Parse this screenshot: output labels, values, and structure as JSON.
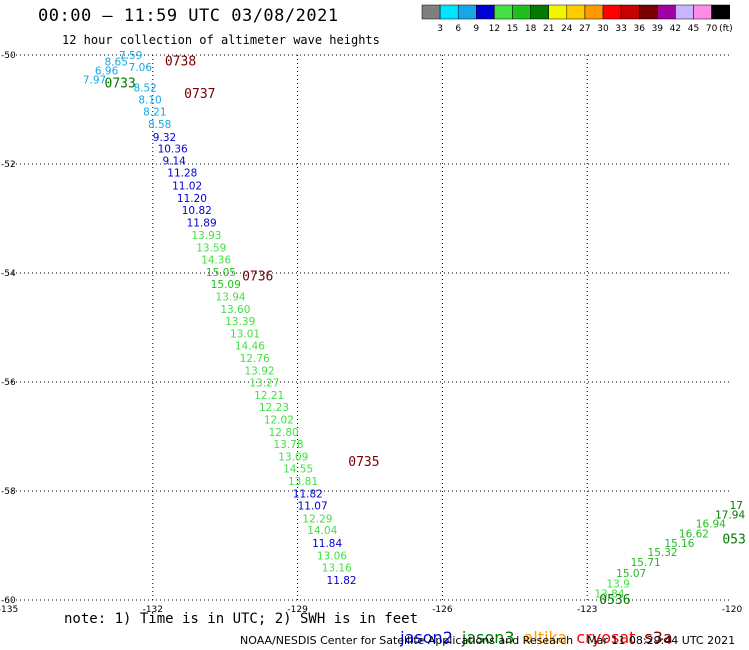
{
  "title": "00:00 – 11:59 UTC 03/08/2021",
  "subtitle": "12 hour collection of altimeter wave heights",
  "colorbar": {
    "unit": "(ft)",
    "bins": [
      {
        "label": "3",
        "color": "#7f7f7f"
      },
      {
        "label": "6",
        "color": "#00e5ff"
      },
      {
        "label": "9",
        "color": "#14a8e8"
      },
      {
        "label": "12",
        "color": "#0000d6"
      },
      {
        "label": "15",
        "color": "#44e044"
      },
      {
        "label": "18",
        "color": "#1fbf1f"
      },
      {
        "label": "21",
        "color": "#007a00"
      },
      {
        "label": "24",
        "color": "#f5f500"
      },
      {
        "label": "27",
        "color": "#ffcc00"
      },
      {
        "label": "30",
        "color": "#ff9900"
      },
      {
        "label": "33",
        "color": "#ff0000"
      },
      {
        "label": "36",
        "color": "#c80000"
      },
      {
        "label": "39",
        "color": "#780000"
      },
      {
        "label": "42",
        "color": "#a000a0"
      },
      {
        "label": "45",
        "color": "#c8b4ff"
      },
      {
        "label": "70",
        "color": "#ff8ce6"
      },
      {
        "label": "",
        "color": "#000000"
      }
    ]
  },
  "axes": {
    "x_ticks": [
      -135,
      -132,
      -129,
      -126,
      -123,
      -120
    ],
    "x_tick_labels": [
      "-135",
      "-132",
      "-129",
      "-126",
      "-123",
      "-120"
    ],
    "y_ticks": [
      -50,
      -52,
      -54,
      -56,
      -58,
      -60
    ],
    "y_tick_labels": [
      "-50",
      "-52",
      "-54",
      "-56",
      "-58",
      "-60"
    ],
    "xlim": [
      -135,
      -120
    ],
    "ylim": [
      -60,
      -50
    ]
  },
  "map_data": {
    "wave_heights": [
      {
        "value": "7.59",
        "lon": -132.7,
        "lat": -50.0,
        "color": "#14a8e8"
      },
      {
        "value": "8.65",
        "lon": -133.0,
        "lat": -50.12,
        "color": "#14a8e8"
      },
      {
        "value": "7.06",
        "lon": -132.5,
        "lat": -50.22,
        "color": "#14a8e8"
      },
      {
        "value": "6.96",
        "lon": -133.2,
        "lat": -50.28,
        "color": "#14a8e8"
      },
      {
        "value": "7.97",
        "lon": -133.45,
        "lat": -50.45,
        "color": "#14a8e8"
      },
      {
        "value": "8.52",
        "lon": -132.4,
        "lat": -50.6,
        "color": "#14a8e8"
      },
      {
        "value": "8.10",
        "lon": -132.3,
        "lat": -50.82,
        "color": "#14a8e8"
      },
      {
        "value": "8.21",
        "lon": -132.2,
        "lat": -51.04,
        "color": "#14a8e8"
      },
      {
        "value": "8.58",
        "lon": -132.1,
        "lat": -51.27,
        "color": "#14a8e8"
      },
      {
        "value": "9.32",
        "lon": -132.0,
        "lat": -51.5,
        "color": "#0000d6"
      },
      {
        "value": "10.36",
        "lon": -131.9,
        "lat": -51.72,
        "color": "#0000d6"
      },
      {
        "value": "9.14",
        "lon": -131.8,
        "lat": -51.94,
        "color": "#0000d6"
      },
      {
        "value": "11.28",
        "lon": -131.7,
        "lat": -52.16,
        "color": "#0000d6"
      },
      {
        "value": "11.02",
        "lon": -131.6,
        "lat": -52.39,
        "color": "#0000d6"
      },
      {
        "value": "11.20",
        "lon": -131.5,
        "lat": -52.62,
        "color": "#0000d6"
      },
      {
        "value": "10.82",
        "lon": -131.4,
        "lat": -52.84,
        "color": "#0000d6"
      },
      {
        "value": "11.89",
        "lon": -131.3,
        "lat": -53.07,
        "color": "#0000d6"
      },
      {
        "value": "13.93",
        "lon": -131.2,
        "lat": -53.3,
        "color": "#44e044"
      },
      {
        "value": "13.59",
        "lon": -131.1,
        "lat": -53.53,
        "color": "#44e044"
      },
      {
        "value": "14.36",
        "lon": -131.0,
        "lat": -53.75,
        "color": "#44e044"
      },
      {
        "value": "15.05",
        "lon": -130.9,
        "lat": -53.98,
        "color": "#1fbf1f"
      },
      {
        "value": "15.09",
        "lon": -130.8,
        "lat": -54.2,
        "color": "#1fbf1f"
      },
      {
        "value": "13.94",
        "lon": -130.7,
        "lat": -54.43,
        "color": "#44e044"
      },
      {
        "value": "13.60",
        "lon": -130.6,
        "lat": -54.66,
        "color": "#44e044"
      },
      {
        "value": "13.39",
        "lon": -130.5,
        "lat": -54.88,
        "color": "#44e044"
      },
      {
        "value": "13.01",
        "lon": -130.4,
        "lat": -55.11,
        "color": "#44e044"
      },
      {
        "value": "14.46",
        "lon": -130.3,
        "lat": -55.33,
        "color": "#44e044"
      },
      {
        "value": "12.76",
        "lon": -130.2,
        "lat": -55.56,
        "color": "#44e044"
      },
      {
        "value": "13.92",
        "lon": -130.1,
        "lat": -55.79,
        "color": "#44e044"
      },
      {
        "value": "13.27",
        "lon": -130.0,
        "lat": -56.01,
        "color": "#44e044"
      },
      {
        "value": "12.21",
        "lon": -129.9,
        "lat": -56.24,
        "color": "#44e044"
      },
      {
        "value": "12.23",
        "lon": -129.8,
        "lat": -56.46,
        "color": "#44e044"
      },
      {
        "value": "12.02",
        "lon": -129.7,
        "lat": -56.69,
        "color": "#44e044"
      },
      {
        "value": "12.80",
        "lon": -129.6,
        "lat": -56.92,
        "color": "#44e044"
      },
      {
        "value": "13.78",
        "lon": -129.5,
        "lat": -57.14,
        "color": "#44e044"
      },
      {
        "value": "13.09",
        "lon": -129.4,
        "lat": -57.37,
        "color": "#44e044"
      },
      {
        "value": "14.55",
        "lon": -129.3,
        "lat": -57.59,
        "color": "#44e044"
      },
      {
        "value": "13.81",
        "lon": -129.2,
        "lat": -57.82,
        "color": "#44e044"
      },
      {
        "value": "11.82",
        "lon": -129.1,
        "lat": -58.05,
        "color": "#0000d6"
      },
      {
        "value": "11.07",
        "lon": -129.0,
        "lat": -58.27,
        "color": "#0000d6"
      },
      {
        "value": "12.29",
        "lon": -128.9,
        "lat": -58.5,
        "color": "#44e044"
      },
      {
        "value": "14.04",
        "lon": -128.8,
        "lat": -58.72,
        "color": "#44e044"
      },
      {
        "value": "11.84",
        "lon": -128.7,
        "lat": -58.95,
        "color": "#0000d6"
      },
      {
        "value": "13.06",
        "lon": -128.6,
        "lat": -59.18,
        "color": "#44e044"
      },
      {
        "value": "13.16",
        "lon": -128.5,
        "lat": -59.4,
        "color": "#44e044"
      },
      {
        "value": "11.82",
        "lon": -128.4,
        "lat": -59.63,
        "color": "#0000d6"
      },
      {
        "value": "13.84",
        "lon": -122.85,
        "lat": -59.88,
        "color": "#44e044"
      },
      {
        "value": "13.9",
        "lon": -122.6,
        "lat": -59.7,
        "color": "#44e044"
      },
      {
        "value": "15.07",
        "lon": -122.4,
        "lat": -59.5,
        "color": "#1fbf1f"
      },
      {
        "value": "15.71",
        "lon": -122.1,
        "lat": -59.3,
        "color": "#1fbf1f"
      },
      {
        "value": "15.32",
        "lon": -121.75,
        "lat": -59.12,
        "color": "#1fbf1f"
      },
      {
        "value": "15.16",
        "lon": -121.4,
        "lat": -58.95,
        "color": "#1fbf1f"
      },
      {
        "value": "16.62",
        "lon": -121.1,
        "lat": -58.78,
        "color": "#1fbf1f"
      },
      {
        "value": "16.94",
        "lon": -120.75,
        "lat": -58.6,
        "color": "#1fbf1f"
      },
      {
        "value": "17.94",
        "lon": -120.35,
        "lat": -58.43,
        "color": "#007a00"
      },
      {
        "value": "17",
        "lon": -120.05,
        "lat": -58.26,
        "color": "#007a00"
      }
    ],
    "time_labels": [
      {
        "value": "0738",
        "lon": -131.75,
        "lat": -50.1,
        "color": "#780000"
      },
      {
        "value": "0737",
        "lon": -131.35,
        "lat": -50.7,
        "color": "#780000"
      },
      {
        "value": "0736",
        "lon": -130.15,
        "lat": -54.05,
        "color": "#780000"
      },
      {
        "value": "0735",
        "lon": -127.95,
        "lat": -57.45,
        "color": "#780000"
      },
      {
        "value": "0733",
        "lon": -133.0,
        "lat": -50.5,
        "color": "#007a00"
      },
      {
        "value": "0536",
        "lon": -122.75,
        "lat": -59.98,
        "color": "#007a00"
      },
      {
        "value": "053",
        "lon": -120.2,
        "lat": -58.87,
        "color": "#007a00"
      }
    ]
  },
  "note": "note: 1) Time is in UTC; 2) SWH is in feet",
  "satellites": [
    {
      "name": "jason2",
      "color": "#0000d6"
    },
    {
      "name": "jason3",
      "color": "#007a00"
    },
    {
      "name": "altika",
      "color": "#ff9900"
    },
    {
      "name": "cryosat",
      "color": "#ff0000"
    },
    {
      "name": "s3a",
      "color": "#780000"
    }
  ],
  "footer": {
    "credit": "NOAA/NESDIS Center for Satellite Applications and Research",
    "timestamp": "Mar 11 08:29:44 UTC 2021"
  }
}
